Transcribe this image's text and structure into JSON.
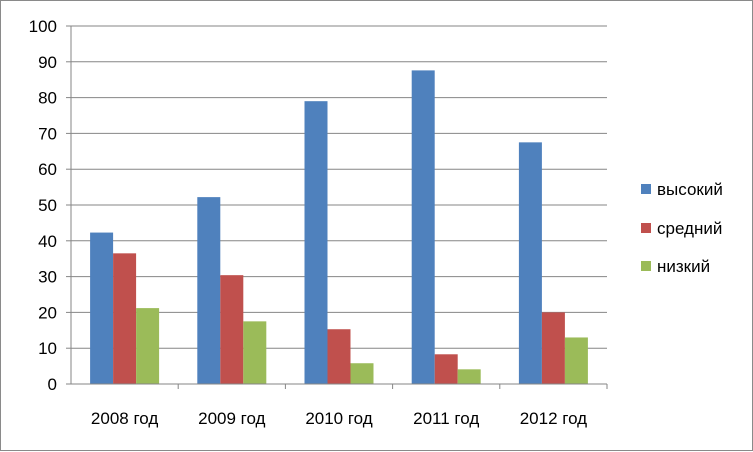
{
  "chart_data": {
    "type": "bar",
    "categories": [
      "2008 год",
      "2009 год",
      "2010 год",
      "2011 год",
      "2012 год"
    ],
    "series": [
      {
        "name": "высокий",
        "color": "#4F81BD",
        "values": [
          42.3,
          52.2,
          79.0,
          87.6,
          67.5
        ]
      },
      {
        "name": "средний",
        "color": "#C0504D",
        "values": [
          36.5,
          30.4,
          15.3,
          8.3,
          20.0
        ]
      },
      {
        "name": "низкий",
        "color": "#9BBB59",
        "values": [
          21.2,
          17.5,
          5.8,
          4.1,
          13.0
        ]
      }
    ],
    "ylim": [
      0,
      100
    ],
    "yticks": [
      0,
      10,
      20,
      30,
      40,
      50,
      60,
      70,
      80,
      90,
      100
    ],
    "grid": true,
    "legend_position": "right",
    "title": "",
    "xlabel": "",
    "ylabel": ""
  }
}
